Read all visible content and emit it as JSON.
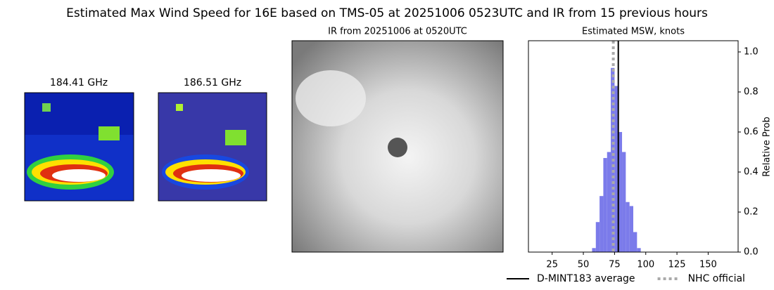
{
  "title": "Estimated Max Wind Speed for 16E based on TMS-05 at 20251006 0523UTC and IR from 15 previous hours",
  "panels": [
    {
      "title": "184.41 GHz"
    },
    {
      "title": "186.51 GHz"
    },
    {
      "title": "IR from 20251006 at 0520UTC"
    }
  ],
  "chart_data": {
    "type": "histogram",
    "title": "Estimated MSW, knots",
    "ylabel": "Relative Prob",
    "color": "#7b7bea",
    "bins": [
      57,
      60,
      63,
      66,
      69,
      72,
      75,
      78,
      81,
      84,
      87,
      90,
      93,
      96,
      99
    ],
    "values": [
      0.02,
      0.15,
      0.28,
      0.47,
      0.5,
      0.92,
      0.83,
      0.6,
      0.5,
      0.25,
      0.23,
      0.1,
      0.02,
      0
    ],
    "xlim": [
      6,
      174
    ],
    "xticks": [
      25,
      50,
      75,
      100,
      125,
      150
    ],
    "ylim": [
      0,
      1.056
    ],
    "yticks": [
      {
        "value": 0,
        "label": "0.0"
      },
      0.2,
      0.4,
      0.6,
      0.8,
      {
        "value": 1,
        "label": "1.0"
      }
    ],
    "lines": [
      {
        "name": "D-MINT183 average",
        "value": 78,
        "color": "#000000",
        "style": "solid"
      },
      {
        "name": "NHC official",
        "value": 74,
        "color": "#aaaaaa",
        "style": "dotted"
      }
    ]
  }
}
